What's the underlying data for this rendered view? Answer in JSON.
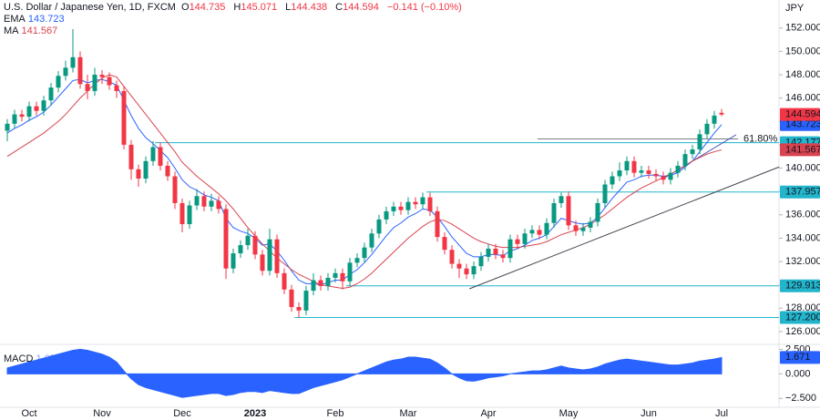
{
  "chart_data": {
    "type": "candlestick",
    "title": "U.S. Dollar / Japanese Yen, 1D, FXCM",
    "currency": "JPY",
    "ohlc_prefixes": [
      "O",
      "H",
      "L",
      "C"
    ],
    "change": {
      "value": -0.141,
      "label": "−0.141"
    },
    "change_pct": {
      "value": -0.1,
      "label": "(−0.10%)"
    },
    "up_color": "#089981",
    "down_color": "#f23645",
    "categories": [
      null,
      null,
      null,
      "Oct",
      null,
      null,
      null,
      null,
      null,
      null,
      null,
      null,
      null,
      "Nov",
      null,
      null,
      null,
      null,
      null,
      null,
      null,
      null,
      null,
      null,
      "Dec",
      null,
      null,
      null,
      null,
      null,
      null,
      null,
      null,
      null,
      "2023",
      null,
      null,
      null,
      null,
      null,
      null,
      null,
      null,
      null,
      null,
      "Feb",
      null,
      null,
      null,
      null,
      null,
      null,
      null,
      null,
      null,
      "Mar",
      null,
      null,
      null,
      null,
      null,
      null,
      null,
      null,
      null,
      null,
      "Apr",
      null,
      null,
      null,
      null,
      null,
      null,
      null,
      null,
      null,
      null,
      "May",
      null,
      null,
      null,
      null,
      null,
      null,
      null,
      null,
      null,
      null,
      "Jun",
      null,
      null,
      null,
      null,
      null,
      null,
      null,
      null,
      null,
      "Jul"
    ],
    "ohlc": [
      [
        143.2,
        144.2,
        142.3,
        143.8
      ],
      [
        143.8,
        145.0,
        143.4,
        144.6
      ],
      [
        144.6,
        145.0,
        144.0,
        144.4
      ],
      [
        144.4,
        145.7,
        144.0,
        145.3
      ],
      [
        145.3,
        145.7,
        144.5,
        144.9
      ],
      [
        144.9,
        146.2,
        144.5,
        145.8
      ],
      [
        145.8,
        147.3,
        145.4,
        146.9
      ],
      [
        146.9,
        148.3,
        146.5,
        147.9
      ],
      [
        147.9,
        149.2,
        147.5,
        148.6
      ],
      [
        148.6,
        151.9,
        148.2,
        149.5
      ],
      [
        149.5,
        150.0,
        146.8,
        147.2
      ],
      [
        147.2,
        148.0,
        145.9,
        146.6
      ],
      [
        146.6,
        148.6,
        146.2,
        148.0
      ],
      [
        148.0,
        148.4,
        147.2,
        147.8
      ],
      [
        147.8,
        148.2,
        146.7,
        147.1
      ],
      [
        147.1,
        147.5,
        146.0,
        146.6
      ],
      [
        146.6,
        147.0,
        141.6,
        142.0
      ],
      [
        142.0,
        142.4,
        139.0,
        139.9
      ],
      [
        139.9,
        140.3,
        138.4,
        139.1
      ],
      [
        139.1,
        141.0,
        138.7,
        140.6
      ],
      [
        140.6,
        142.3,
        140.2,
        141.8
      ],
      [
        141.8,
        142.2,
        139.8,
        140.2
      ],
      [
        140.2,
        140.6,
        138.9,
        139.3
      ],
      [
        139.3,
        139.7,
        136.5,
        137.0
      ],
      [
        137.0,
        137.4,
        134.5,
        135.2
      ],
      [
        135.2,
        137.2,
        134.8,
        136.8
      ],
      [
        136.8,
        138.2,
        136.4,
        137.6
      ],
      [
        137.6,
        138.0,
        136.3,
        136.7
      ],
      [
        136.7,
        137.8,
        136.3,
        137.2
      ],
      [
        137.2,
        137.6,
        136.1,
        136.5
      ],
      [
        136.5,
        136.9,
        130.5,
        131.4
      ],
      [
        131.4,
        133.1,
        131.0,
        132.7
      ],
      [
        132.7,
        133.8,
        132.3,
        133.4
      ],
      [
        133.4,
        134.8,
        133.0,
        134.2
      ],
      [
        134.2,
        134.6,
        132.2,
        132.6
      ],
      [
        132.6,
        133.0,
        130.8,
        131.2
      ],
      [
        131.2,
        134.8,
        130.8,
        133.9
      ],
      [
        133.9,
        134.3,
        130.6,
        131.0
      ],
      [
        131.0,
        131.4,
        129.2,
        129.6
      ],
      [
        129.6,
        130.0,
        127.7,
        128.1
      ],
      [
        128.1,
        128.5,
        127.2,
        127.8
      ],
      [
        127.8,
        129.9,
        127.4,
        129.5
      ],
      [
        129.5,
        131.0,
        129.1,
        130.4
      ],
      [
        130.4,
        130.8,
        129.5,
        129.9
      ],
      [
        129.9,
        131.0,
        129.5,
        130.6
      ],
      [
        130.6,
        131.4,
        130.2,
        131.0
      ],
      [
        131.0,
        131.4,
        129.6,
        130.3
      ],
      [
        130.3,
        132.3,
        129.9,
        131.9
      ],
      [
        131.9,
        132.7,
        131.5,
        132.3
      ],
      [
        132.3,
        133.6,
        131.9,
        133.2
      ],
      [
        133.2,
        134.8,
        132.8,
        134.4
      ],
      [
        134.4,
        136.0,
        134.0,
        135.6
      ],
      [
        135.6,
        136.7,
        135.2,
        136.3
      ],
      [
        136.3,
        137.1,
        135.9,
        136.7
      ],
      [
        136.7,
        137.1,
        136.0,
        136.4
      ],
      [
        136.4,
        137.5,
        136.0,
        137.1
      ],
      [
        137.1,
        137.5,
        136.5,
        136.9
      ],
      [
        136.9,
        137.9,
        136.5,
        137.5
      ],
      [
        137.5,
        137.9,
        135.9,
        136.3
      ],
      [
        136.3,
        136.7,
        133.7,
        134.1
      ],
      [
        134.1,
        134.5,
        132.6,
        133.0
      ],
      [
        133.0,
        133.4,
        131.4,
        131.8
      ],
      [
        131.8,
        132.2,
        130.6,
        131.4
      ],
      [
        131.4,
        131.8,
        130.5,
        130.9
      ],
      [
        130.9,
        132.0,
        130.5,
        131.6
      ],
      [
        131.6,
        132.8,
        131.2,
        132.4
      ],
      [
        132.4,
        133.5,
        132.0,
        133.1
      ],
      [
        133.1,
        133.5,
        132.2,
        132.6
      ],
      [
        132.6,
        133.0,
        131.9,
        132.3
      ],
      [
        132.3,
        134.3,
        131.9,
        133.9
      ],
      [
        133.9,
        134.3,
        133.1,
        133.5
      ],
      [
        133.5,
        134.8,
        133.1,
        134.4
      ],
      [
        134.4,
        135.1,
        134.0,
        134.7
      ],
      [
        134.7,
        135.1,
        133.9,
        134.3
      ],
      [
        134.3,
        135.7,
        133.9,
        135.3
      ],
      [
        135.3,
        137.4,
        134.9,
        137.0
      ],
      [
        137.0,
        137.9,
        136.6,
        137.6
      ],
      [
        137.6,
        138.0,
        134.7,
        135.1
      ],
      [
        135.1,
        135.5,
        134.2,
        134.6
      ],
      [
        134.6,
        135.3,
        134.2,
        134.9
      ],
      [
        134.9,
        135.8,
        134.5,
        135.4
      ],
      [
        135.4,
        137.4,
        135.0,
        137.0
      ],
      [
        137.0,
        139.0,
        136.6,
        138.6
      ],
      [
        138.6,
        139.7,
        138.2,
        139.3
      ],
      [
        139.3,
        140.5,
        138.9,
        139.8
      ],
      [
        139.8,
        141.0,
        139.4,
        140.6
      ],
      [
        140.6,
        141.0,
        139.2,
        139.6
      ],
      [
        139.6,
        140.2,
        139.2,
        139.8
      ],
      [
        139.8,
        140.2,
        139.1,
        139.5
      ],
      [
        139.5,
        139.9,
        138.9,
        139.3
      ],
      [
        139.3,
        139.7,
        138.6,
        139.0
      ],
      [
        139.0,
        140.0,
        138.6,
        139.6
      ],
      [
        139.6,
        140.6,
        139.2,
        140.2
      ],
      [
        140.2,
        141.6,
        139.8,
        141.2
      ],
      [
        141.2,
        142.0,
        140.8,
        141.6
      ],
      [
        141.6,
        143.3,
        141.2,
        142.9
      ],
      [
        142.9,
        144.2,
        142.5,
        143.8
      ],
      [
        143.8,
        144.9,
        143.4,
        144.5
      ],
      [
        144.735,
        145.071,
        144.438,
        144.594
      ]
    ],
    "series": [
      {
        "name": "EMA",
        "color": "#2962ff",
        "values": [
          143.0,
          143.4,
          143.7,
          144.1,
          144.4,
          144.8,
          145.4,
          146.1,
          146.8,
          147.5,
          147.6,
          147.3,
          147.5,
          147.6,
          147.4,
          147.1,
          145.8,
          144.5,
          143.4,
          142.6,
          142.1,
          141.5,
          140.9,
          140.0,
          139.0,
          138.4,
          138.1,
          137.7,
          137.5,
          137.2,
          135.7,
          134.9,
          134.6,
          134.4,
          134.0,
          133.4,
          133.5,
          132.9,
          132.1,
          131.2,
          130.4,
          130.1,
          130.1,
          130.0,
          130.2,
          130.4,
          130.4,
          130.9,
          131.3,
          131.9,
          132.6,
          133.4,
          134.2,
          134.9,
          135.3,
          135.8,
          136.1,
          136.5,
          136.4,
          135.8,
          135.0,
          134.1,
          133.4,
          132.7,
          132.4,
          132.4,
          132.6,
          132.6,
          132.5,
          132.9,
          133.1,
          133.4,
          133.8,
          134.0,
          134.3,
          135.0,
          135.7,
          135.5,
          135.3,
          135.2,
          135.3,
          135.8,
          136.6,
          137.4,
          138.1,
          138.8,
          139.0,
          139.3,
          139.4,
          139.4,
          139.3,
          139.4,
          139.6,
          140.1,
          140.6,
          141.4,
          142.2,
          143.0,
          143.723
        ]
      },
      {
        "name": "MA",
        "color": "#d9434f",
        "values": [
          141.0,
          141.4,
          141.8,
          142.2,
          142.6,
          143.0,
          143.5,
          144.0,
          144.6,
          145.3,
          146.0,
          146.6,
          147.2,
          147.7,
          148.0,
          147.8,
          147.0,
          146.2,
          145.4,
          144.6,
          143.8,
          143.0,
          142.2,
          141.4,
          140.5,
          139.9,
          139.3,
          138.8,
          138.3,
          137.8,
          137.2,
          136.5,
          135.7,
          134.9,
          134.2,
          133.5,
          132.9,
          132.3,
          131.8,
          131.3,
          130.9,
          130.6,
          130.3,
          130.0,
          129.9,
          129.8,
          129.7,
          129.8,
          130.1,
          130.5,
          131.0,
          131.6,
          132.2,
          132.8,
          133.4,
          134.0,
          134.5,
          135.0,
          135.4,
          135.6,
          135.5,
          135.2,
          134.8,
          134.4,
          134.0,
          133.7,
          133.5,
          133.3,
          133.2,
          133.2,
          133.2,
          133.3,
          133.4,
          133.5,
          133.7,
          134.0,
          134.3,
          134.5,
          134.7,
          134.9,
          135.2,
          135.6,
          136.0,
          136.5,
          137.0,
          137.5,
          137.9,
          138.3,
          138.6,
          138.9,
          139.2,
          139.5,
          139.8,
          140.2,
          140.6,
          140.9,
          141.2,
          141.4,
          141.567
        ]
      }
    ],
    "ylim": [
      124.9,
      154.4
    ],
    "yticks": [
      {
        "value": 126,
        "label": "126.000"
      },
      {
        "value": 128,
        "label": "128.000"
      },
      {
        "value": 130,
        "label": "130.000"
      },
      {
        "value": 132,
        "label": "132.000"
      },
      {
        "value": 134,
        "label": "134.000"
      },
      {
        "value": 136,
        "label": "136.000"
      },
      {
        "value": 138,
        "label": "138.000"
      },
      {
        "value": 140,
        "label": "140.000"
      },
      {
        "value": 142,
        "label": "142.000"
      },
      {
        "value": 144,
        "label": "144.000"
      },
      {
        "value": 146,
        "label": "146.000"
      },
      {
        "value": 148,
        "label": "148.000"
      },
      {
        "value": 150,
        "label": "150.000"
      },
      {
        "value": 152,
        "label": "152.000"
      }
    ],
    "grid": false,
    "levels": [
      {
        "value": 142.177,
        "start": 20.25
      },
      {
        "value": 137.957,
        "start": 57.5
      },
      {
        "value": 129.913,
        "start": 46.5
      },
      {
        "value": 127.2,
        "label": "127.200",
        "start": 39.4
      }
    ],
    "level_color": "#22b5cc",
    "fib": {
      "level": 142.5,
      "label": "61.80%",
      "x": [
        72.75,
        100.25
      ]
    },
    "trendlines": [
      {
        "x": [
          63.4,
          105.9
        ],
        "y": [
          129.66,
          140.1
        ]
      },
      {
        "x": [
          90.25,
          100
        ],
        "y": [
          139.19,
          142.86
        ]
      }
    ],
    "macd": {
      "name": "MACD",
      "color": "#2962ff",
      "ylim": [
        -3.4,
        3.0
      ],
      "yticks": [
        {
          "value": 2.5,
          "label": "2.500"
        },
        {
          "value": 0,
          "label": "0.000"
        },
        {
          "value": -2.5,
          "label": "−2.500"
        }
      ],
      "values": [
        0.6,
        0.8,
        1.0,
        1.2,
        1.4,
        1.6,
        1.8,
        2.0,
        2.2,
        2.4,
        2.5,
        2.4,
        2.2,
        2.0,
        1.7,
        1.2,
        0.3,
        -0.5,
        -1.1,
        -1.4,
        -1.6,
        -1.8,
        -2.0,
        -2.2,
        -2.4,
        -2.3,
        -2.2,
        -2.1,
        -2.0,
        -2.0,
        -2.2,
        -2.1,
        -1.9,
        -1.8,
        -1.8,
        -1.9,
        -1.7,
        -1.8,
        -1.9,
        -2.0,
        -2.0,
        -1.7,
        -1.4,
        -1.2,
        -1.0,
        -0.8,
        -0.6,
        -0.3,
        0.0,
        0.3,
        0.6,
        0.9,
        1.2,
        1.4,
        1.5,
        1.7,
        1.7,
        1.6,
        1.5,
        1.1,
        0.6,
        0.0,
        -0.4,
        -0.7,
        -0.75,
        -0.6,
        -0.4,
        -0.3,
        -0.2,
        0.0,
        0.1,
        0.2,
        0.3,
        0.3,
        0.4,
        0.6,
        0.8,
        0.6,
        0.5,
        0.4,
        0.5,
        0.7,
        1.0,
        1.2,
        1.4,
        1.5,
        1.4,
        1.3,
        1.2,
        1.1,
        1.0,
        0.9,
        0.9,
        1.0,
        1.1,
        1.3,
        1.4,
        1.5,
        1.671
      ]
    }
  }
}
